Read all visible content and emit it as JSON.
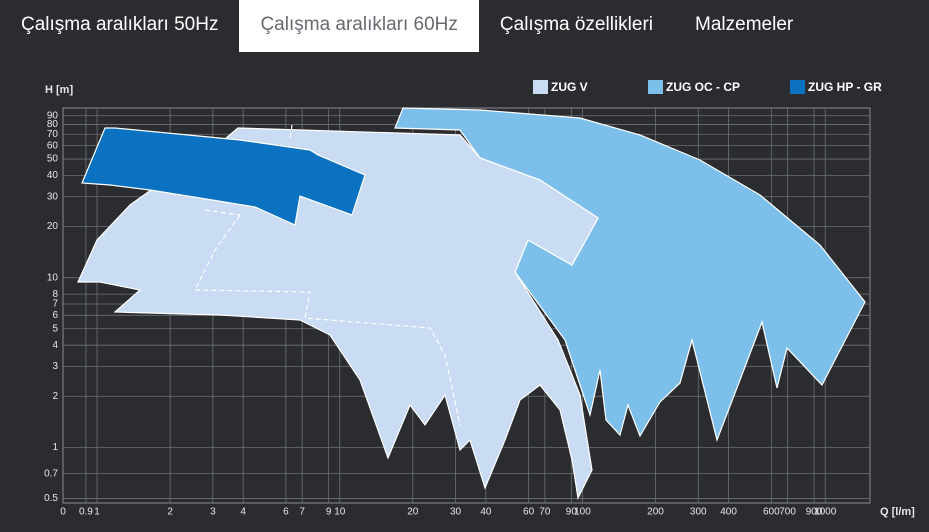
{
  "tabs": [
    {
      "label": "Çalışma aralıkları 50Hz",
      "active": false
    },
    {
      "label": "Çalışma aralıkları 60Hz",
      "active": true
    },
    {
      "label": "Çalışma özellikleri",
      "active": false
    },
    {
      "label": "Malzemeler",
      "active": false
    }
  ],
  "chart_data": {
    "type": "area",
    "y_label": "H [m]",
    "x_label": "Q [l/m]",
    "x_origin_label": "0",
    "xscale": "log",
    "yscale": "log",
    "grid": true,
    "xlim": [
      0.724,
      1530
    ],
    "ylim": [
      0.47,
      100
    ],
    "xticks": [
      0.9,
      1,
      2,
      3,
      4,
      6,
      7,
      9,
      10,
      20,
      30,
      40,
      60,
      70,
      90,
      100,
      200,
      300,
      400,
      600,
      700,
      900,
      1000
    ],
    "yticks": [
      0.5,
      0.7,
      1,
      2,
      3,
      4,
      5,
      6,
      7,
      8,
      10,
      20,
      30,
      40,
      50,
      60,
      70,
      80,
      90
    ],
    "legend": [
      {
        "name": "ZUG V",
        "color": "#c9dcf3"
      },
      {
        "name": "ZUG OC - CP",
        "color": "#7cbfea"
      },
      {
        "name": "ZUG HP - GR",
        "color": "#0b72c1"
      }
    ]
  }
}
